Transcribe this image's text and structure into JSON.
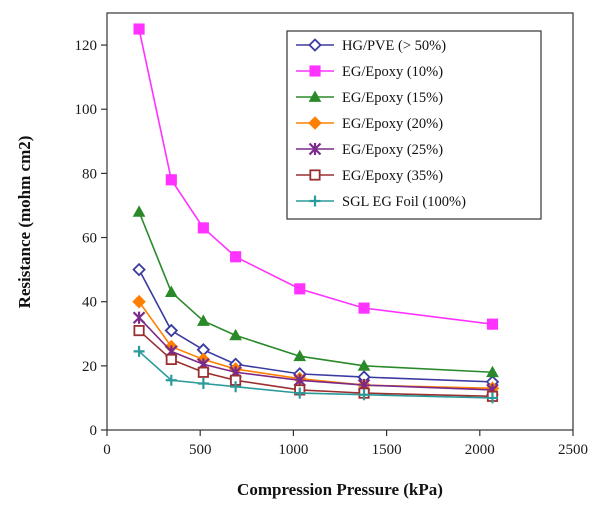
{
  "chart_data": {
    "type": "line",
    "xlabel": "Compression Pressure (kPa)",
    "ylabel": "Resistance (mohm cm2)",
    "xlim": [
      0,
      2500
    ],
    "ylim": [
      0,
      130
    ],
    "xticks": [
      0,
      500,
      1000,
      1500,
      2000,
      2500
    ],
    "yticks": [
      0,
      20,
      40,
      60,
      80,
      100,
      120
    ],
    "x": [
      172,
      345,
      517,
      690,
      1034,
      1379,
      2068
    ],
    "grid": false,
    "legend_position": "top-right",
    "series": [
      {
        "name": "HG/PVE (> 50%)",
        "color": "#3b3ba0",
        "marker": "diamond-open",
        "values": [
          50,
          31,
          25,
          20.5,
          17.5,
          16.5,
          15
        ]
      },
      {
        "name": "EG/Epoxy (10%)",
        "color": "#ff33ff",
        "marker": "square-filled",
        "values": [
          125,
          78,
          63,
          54,
          44,
          38,
          33
        ]
      },
      {
        "name": "EG/Epoxy (15%)",
        "color": "#2a8a2a",
        "marker": "triangle-filled",
        "values": [
          68,
          43,
          34,
          29.5,
          23,
          20,
          18
        ]
      },
      {
        "name": "EG/Epoxy (20%)",
        "color": "#ff8000",
        "marker": "diamond-filled",
        "values": [
          40,
          26,
          22,
          19,
          16,
          14,
          13
        ]
      },
      {
        "name": "EG/Epoxy (25%)",
        "color": "#7a2a8a",
        "marker": "asterisk",
        "values": [
          35,
          24.5,
          20.5,
          18,
          15.5,
          14,
          12.5
        ]
      },
      {
        "name": "EG/Epoxy (35%)",
        "color": "#9a3030",
        "marker": "square-open",
        "values": [
          31,
          22,
          18,
          15.5,
          12.5,
          11.5,
          10.5
        ]
      },
      {
        "name": "SGL EG Foil (100%)",
        "color": "#2a9a9a",
        "marker": "plus",
        "values": [
          24.5,
          15.5,
          14.5,
          13.5,
          11.5,
          11,
          10
        ]
      }
    ]
  }
}
